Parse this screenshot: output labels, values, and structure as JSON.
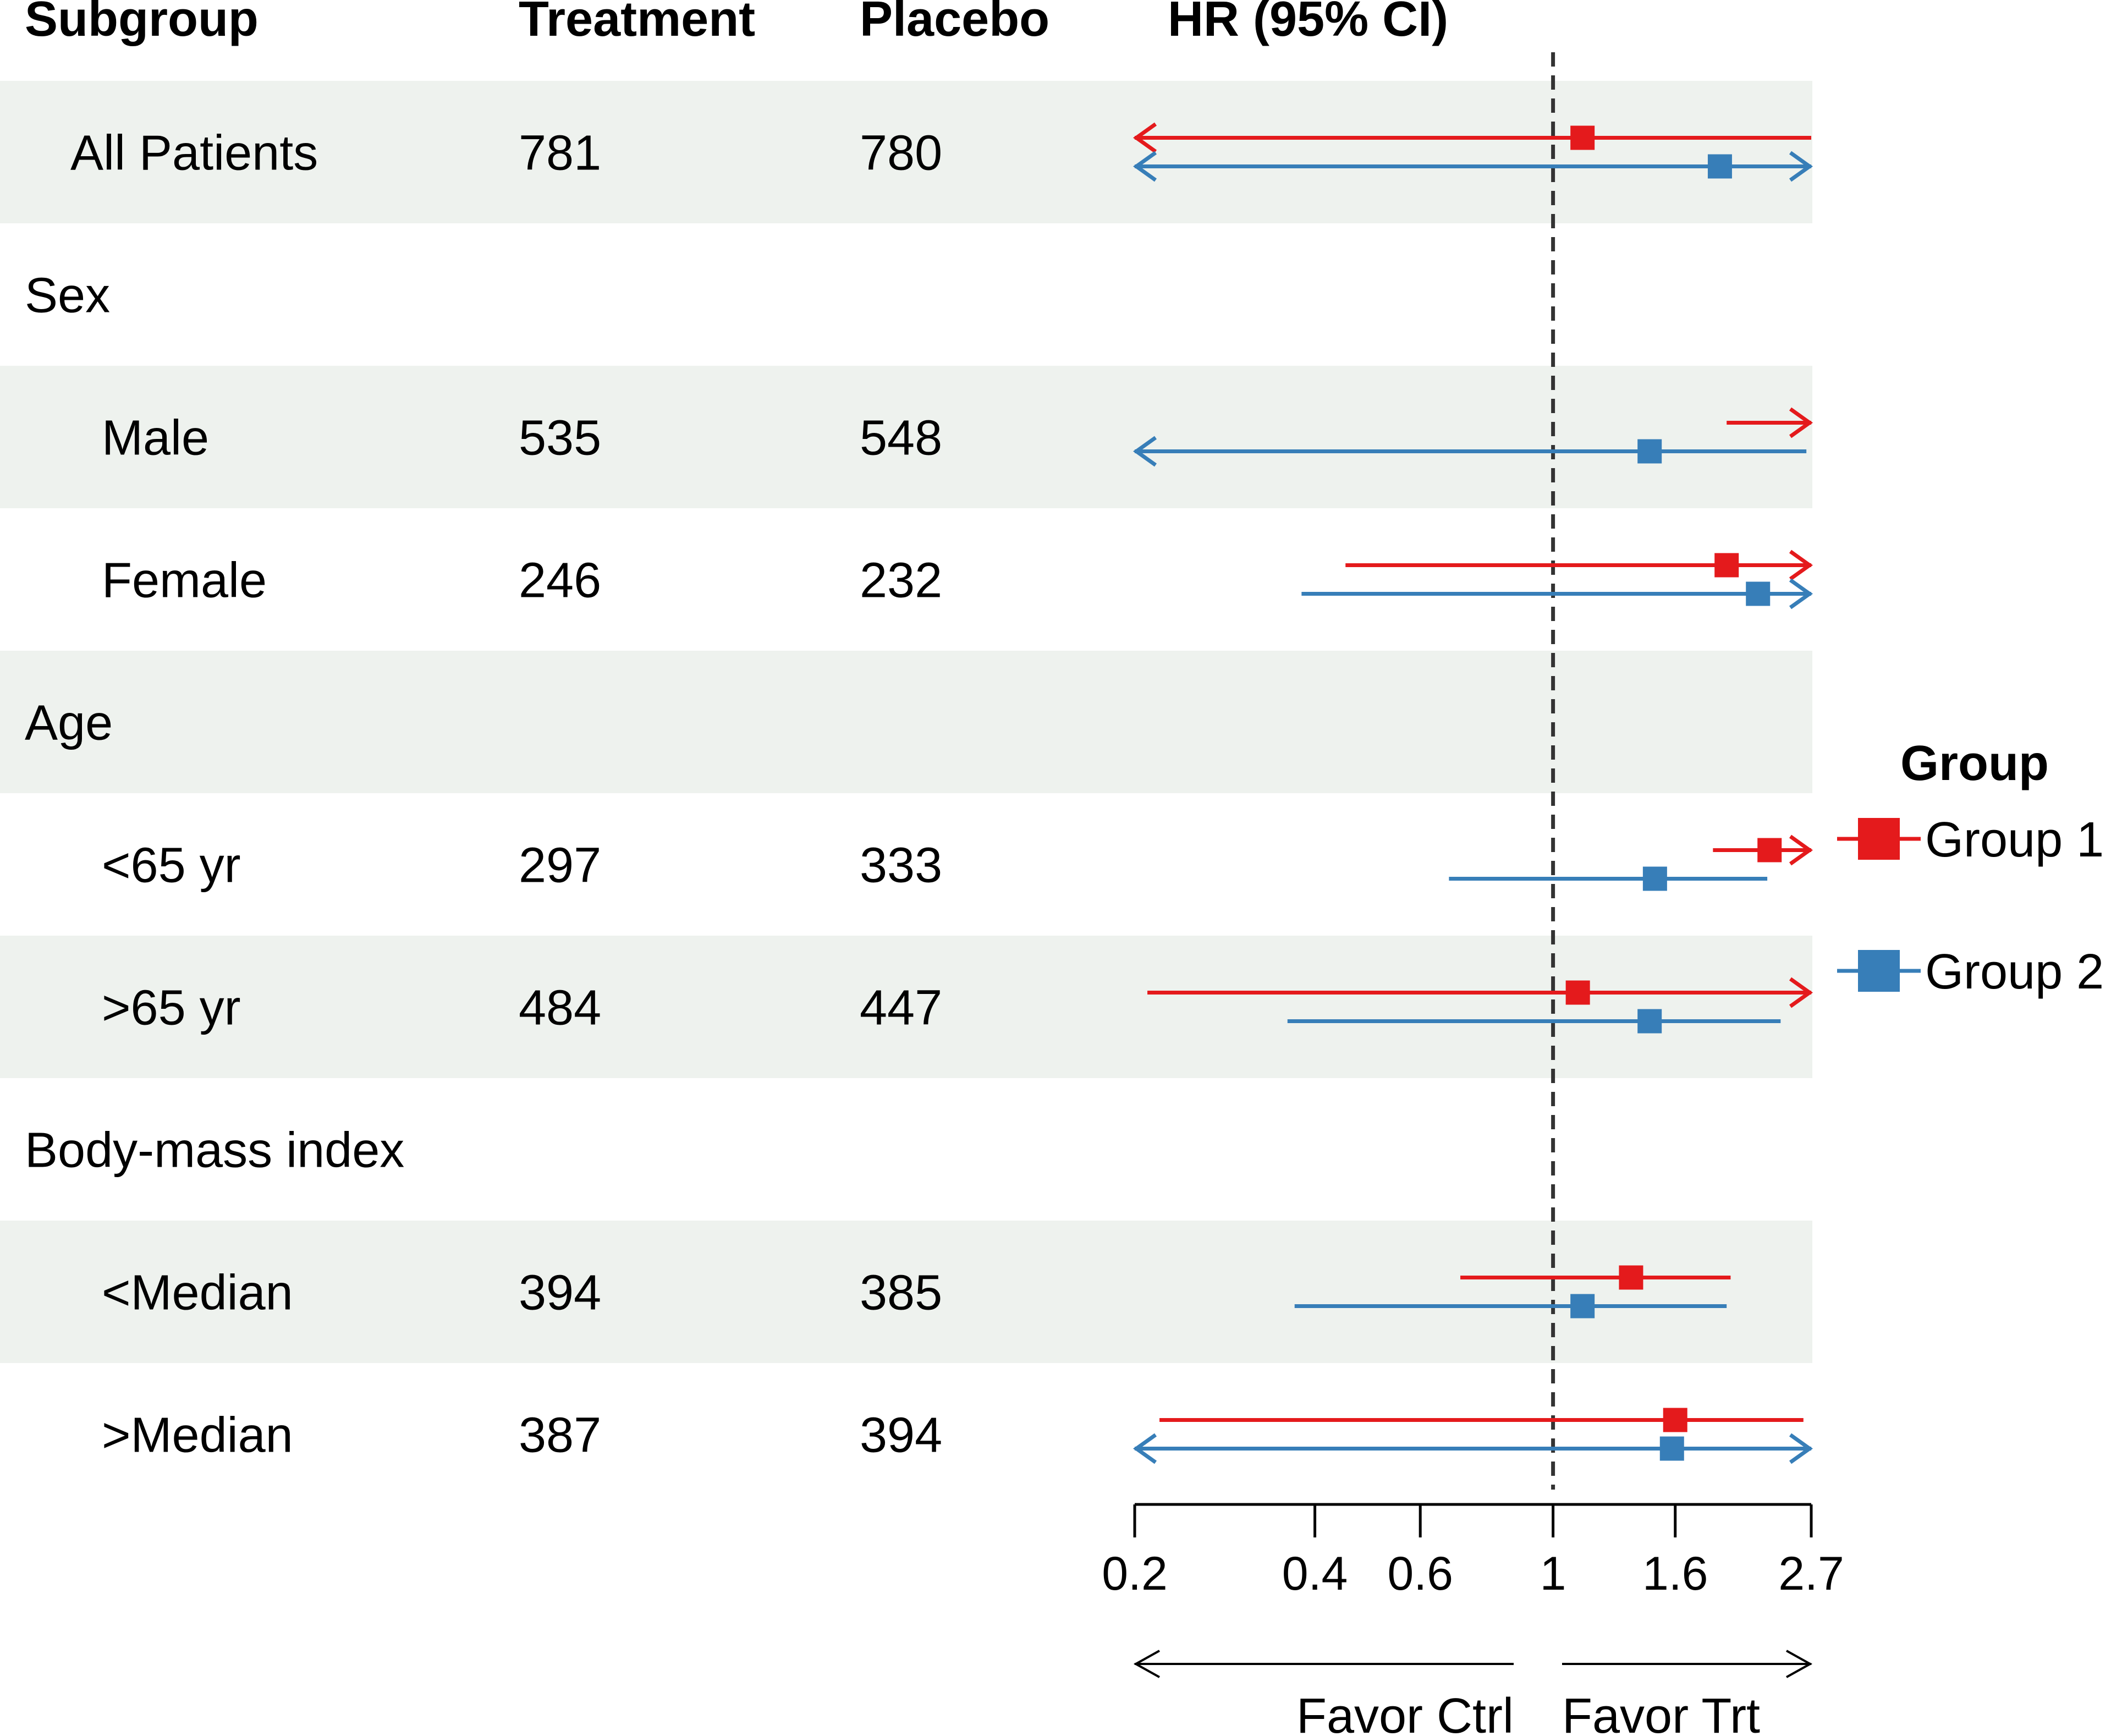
{
  "chart_data": {
    "type": "forest",
    "headers": {
      "subgroup": "Subgroup",
      "treatment": "Treatment",
      "placebo": "Placebo",
      "hr": "HR (95% CI)"
    },
    "rows": [
      {
        "label": "All Patients",
        "indent": 1,
        "shaded": true,
        "treatment": "781",
        "placebo": "780",
        "estimates": [
          {
            "group": "Group 1",
            "hr": 1.12,
            "lo": 0.2,
            "hi": 2.7,
            "arrow_left": true,
            "arrow_right": false
          },
          {
            "group": "Group 2",
            "hr": 1.9,
            "lo": 0.2,
            "hi": 2.7,
            "arrow_left": true,
            "arrow_right": true
          }
        ]
      },
      {
        "label": "Sex",
        "indent": 0,
        "shaded": false,
        "treatment": "",
        "placebo": "",
        "estimates": []
      },
      {
        "label": "Male",
        "indent": 2,
        "shaded": true,
        "treatment": "535",
        "placebo": "548",
        "estimates": [
          {
            "group": "Group 1",
            "hr": null,
            "lo": 1.95,
            "hi": 2.7,
            "arrow_left": false,
            "arrow_right": true
          },
          {
            "group": "Group 2",
            "hr": 1.45,
            "lo": 0.2,
            "hi": 2.65,
            "arrow_left": true,
            "arrow_right": false
          }
        ]
      },
      {
        "label": "Female",
        "indent": 2,
        "shaded": false,
        "treatment": "246",
        "placebo": "232",
        "estimates": [
          {
            "group": "Group 1",
            "hr": 1.95,
            "lo": 0.45,
            "hi": 2.7,
            "arrow_left": false,
            "arrow_right": true
          },
          {
            "group": "Group 2",
            "hr": 2.2,
            "lo": 0.38,
            "hi": 2.7,
            "arrow_left": false,
            "arrow_right": true
          }
        ]
      },
      {
        "label": "Age",
        "indent": 0,
        "shaded": true,
        "treatment": "",
        "placebo": "",
        "estimates": []
      },
      {
        "label": "<65 yr",
        "indent": 2,
        "shaded": false,
        "treatment": "297",
        "placebo": "333",
        "estimates": [
          {
            "group": "Group 1",
            "hr": 2.3,
            "lo": 1.85,
            "hi": 2.7,
            "arrow_left": false,
            "arrow_right": true
          },
          {
            "group": "Group 2",
            "hr": 1.48,
            "lo": 0.67,
            "hi": 2.28,
            "arrow_left": false,
            "arrow_right": false
          }
        ]
      },
      {
        "label": ">65 yr",
        "indent": 2,
        "shaded": true,
        "treatment": "484",
        "placebo": "447",
        "estimates": [
          {
            "group": "Group 1",
            "hr": 1.1,
            "lo": 0.21,
            "hi": 2.7,
            "arrow_left": false,
            "arrow_right": true
          },
          {
            "group": "Group 2",
            "hr": 1.45,
            "lo": 0.36,
            "hi": 2.4,
            "arrow_left": false,
            "arrow_right": false
          }
        ]
      },
      {
        "label": "Body-mass index",
        "indent": 0,
        "shaded": false,
        "treatment": "",
        "placebo": "",
        "estimates": []
      },
      {
        "label": "<Median",
        "indent": 2,
        "shaded": true,
        "treatment": "394",
        "placebo": "385",
        "estimates": [
          {
            "group": "Group 1",
            "hr": 1.35,
            "lo": 0.7,
            "hi": 1.98,
            "arrow_left": false,
            "arrow_right": false
          },
          {
            "group": "Group 2",
            "hr": 1.12,
            "lo": 0.37,
            "hi": 1.95,
            "arrow_left": false,
            "arrow_right": false
          }
        ]
      },
      {
        "label": ">Median",
        "indent": 2,
        "shaded": false,
        "treatment": "387",
        "placebo": "394",
        "estimates": [
          {
            "group": "Group 1",
            "hr": 1.6,
            "lo": 0.22,
            "hi": 2.62,
            "arrow_left": false,
            "arrow_right": false
          },
          {
            "group": "Group 2",
            "hr": 1.58,
            "lo": 0.2,
            "hi": 2.7,
            "arrow_left": true,
            "arrow_right": true
          }
        ]
      }
    ],
    "x_axis": {
      "scale": "log",
      "ticks": [
        0.2,
        0.4,
        0.6,
        1,
        1.6,
        2.7
      ],
      "tick_labels": [
        "0.2",
        "0.4",
        "0.6",
        "1",
        "1.6",
        "2.7"
      ],
      "range": [
        0.2,
        2.7
      ],
      "reference_line": 1
    },
    "favor_labels": {
      "left": "Favor Ctrl",
      "right": "Favor Trt"
    },
    "legend": {
      "title": "Group",
      "position": "right",
      "entries": [
        {
          "name": "Group 1",
          "color": "#e41a1c"
        },
        {
          "name": "Group 2",
          "color": "#377eb8"
        }
      ]
    },
    "colors": {
      "group1": "#e41a1c",
      "group2": "#377eb8",
      "band": "#eef2ee",
      "reference": "#333333"
    }
  }
}
